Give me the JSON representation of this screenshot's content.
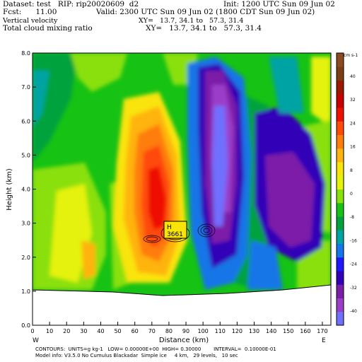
{
  "header": {
    "dataset": "Dataset: test   RIP: rip20020609  d2",
    "init": "Init: 1200 UTC Sun 09 Jun 02",
    "fcst": "Fcst:      11.00",
    "valid": "Valid: 2300 UTC Sun 09 Jun 02 (1800 CDT Sun 09 Jun 02)",
    "field1": "Vertical velocity",
    "field1_xy": "XY=   13.7, 34.1 to   57.3, 31.4",
    "field2": "Total cloud mixing ratio",
    "field2_xy": "XY=   13.7, 34.1 to   57.3, 31.4"
  },
  "footer": {
    "contours": "CONTOURS:  UNITS=g kg-1   LOW= 0.00000E+00  HIGH= 0.30000        INTERVAL=  0.10000E-01",
    "model": "Model info: V3.5.0 No Cumulus Blackadar  Simple ice     4 km,   29 levels,   10 sec"
  },
  "annotation": {
    "label": "H",
    "value": "3661"
  },
  "colors": {
    "colorbar": [
      "#7070ff",
      "#9b3ec9",
      "#7c1fa8",
      "#3100b7",
      "#1f18ff",
      "#1476e8",
      "#00a3a3",
      "#01a23e",
      "#16c214",
      "#8ae00a",
      "#e5f20a",
      "#f9e40a",
      "#ffb30f",
      "#ff7d0b",
      "#ff4a08",
      "#ee1100",
      "#c90000",
      "#9c1800",
      "#7a3d14",
      "#8b4a1f"
    ],
    "terrain": "#ffffff",
    "contour": "#000000"
  },
  "chart_data": {
    "type": "heatmap",
    "xlabel": "Distance (km)",
    "ylabel": "Height (km)",
    "xlim": [
      0,
      175
    ],
    "ylim": [
      0,
      8
    ],
    "x_ticks": [
      "0",
      "10",
      "20",
      "30",
      "40",
      "50",
      "60",
      "70",
      "80",
      "90",
      "100",
      "110",
      "120",
      "130",
      "140",
      "150",
      "160",
      "170"
    ],
    "y_ticks": [
      "0.0",
      "1.0",
      "2.0",
      "3.0",
      "4.0",
      "5.0",
      "6.0",
      "7.0",
      "8.0"
    ],
    "x_end_labels": {
      "left": "W",
      "right": "E"
    },
    "colorbar_units": "cm s-1",
    "colorbar_ticks": [
      "40",
      "32",
      "24",
      "16",
      "8",
      "0",
      "-8",
      "-16",
      "-24",
      "-32",
      "-40"
    ],
    "shaded_field": "Vertical velocity",
    "contour_field": "Total cloud mixing ratio",
    "contour_low": 0.0,
    "contour_high": 0.3,
    "contour_interval": 0.01,
    "terrain_height_km": {
      "x": [
        0,
        40,
        90,
        130,
        175
      ],
      "y": [
        1.05,
        0.95,
        0.8,
        0.9,
        1.15
      ]
    }
  }
}
